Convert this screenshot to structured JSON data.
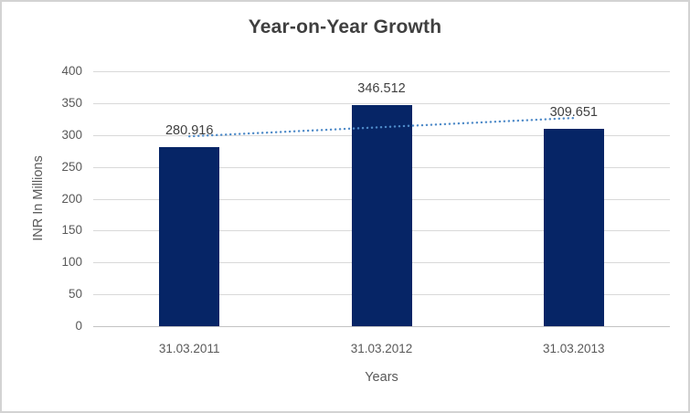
{
  "chart_data": {
    "type": "bar",
    "title": "Year-on-Year Growth",
    "xlabel": "Years",
    "ylabel": "INR In Millions",
    "categories": [
      "31.03.2011",
      "31.03.2012",
      "31.03.2013"
    ],
    "values": [
      280.916,
      346.512,
      309.651
    ],
    "data_labels": [
      "280.916",
      "346.512",
      "309.651"
    ],
    "ylim": [
      0,
      400
    ],
    "yticks": [
      0,
      50,
      100,
      150,
      200,
      250,
      300,
      350,
      400
    ],
    "grid": "horizontal",
    "legend": "none",
    "trendline": {
      "type": "linear",
      "style": "dotted",
      "span": "first-to-last-category-center",
      "color": "#4E8AC8"
    },
    "colors": {
      "bar": "#062566",
      "gridline": "#D9D9D9",
      "axis_line": "#C3C3C3",
      "title_text": "#3F3F3F",
      "tick_text": "#595959",
      "data_label_text": "#404040",
      "chart_border": "#D3D3D3",
      "background": "#FFFFFF"
    }
  }
}
